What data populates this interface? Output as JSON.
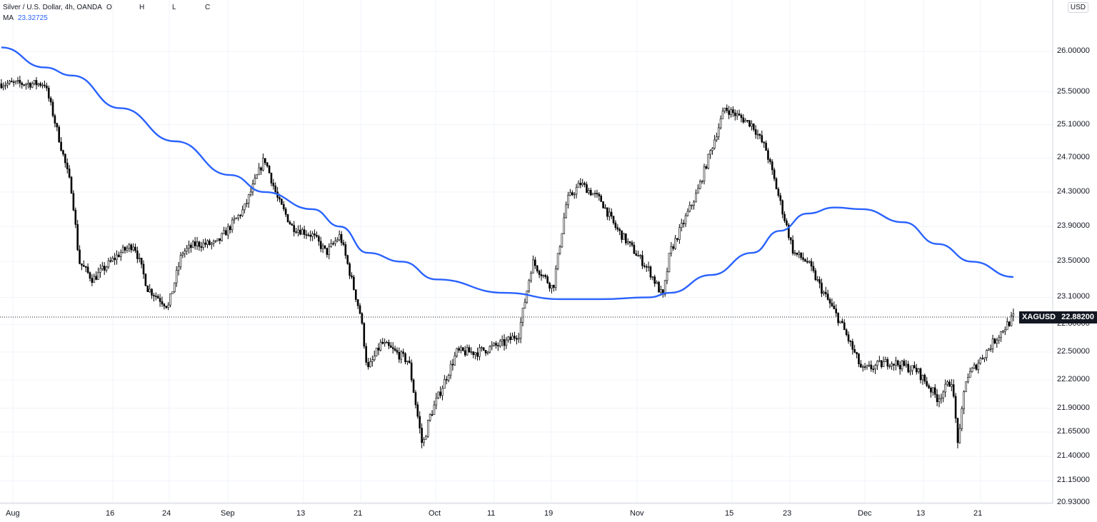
{
  "legend": {
    "symbol_title": "Silver / U.S. Dollar, 4h, OANDA",
    "ohlc_labels": [
      "O",
      "H",
      "L",
      "C"
    ],
    "ma_label": "MA",
    "ma_value": "23.32725"
  },
  "currency": "USD",
  "last_price": {
    "ticker": "XAGUSD",
    "value": "22.88200"
  },
  "colors": {
    "ma_line": "#2962ff",
    "candle": "#000000",
    "last_price_bg": "#131722"
  },
  "chart_data": {
    "type": "line",
    "title": "Silver / U.S. Dollar, 4h, OANDA",
    "ylabel": "USD",
    "y_scale": "log",
    "ylim": [
      20.9,
      26.4
    ],
    "y_ticks": [
      "26.00000",
      "25.50000",
      "25.10000",
      "24.70000",
      "24.30000",
      "23.90000",
      "23.50000",
      "23.10000",
      "22.80000",
      "22.50000",
      "22.20000",
      "21.90000",
      "21.65000",
      "21.40000",
      "21.15000",
      "20.93000"
    ],
    "x_ticks": [
      "Aug",
      "16",
      "24",
      "Sep",
      "13",
      "21",
      "Oct",
      "11",
      "19",
      "Nov",
      "15",
      "23",
      "Dec",
      "13",
      "21"
    ],
    "grid": true,
    "series": [
      {
        "name": "XAGUSD",
        "x": [
          "Aug 2",
          "Aug 5",
          "Aug 6",
          "Aug 9",
          "Aug 10",
          "Aug 12",
          "Aug 16",
          "Aug 18",
          "Aug 20",
          "Aug 23",
          "Aug 25",
          "Aug 27",
          "Aug 30",
          "Sep 3",
          "Sep 6",
          "Sep 8",
          "Sep 10",
          "Sep 13",
          "Sep 15",
          "Sep 17",
          "Sep 20",
          "Sep 21",
          "Sep 23",
          "Sep 27",
          "Sep 29",
          "Sep 30",
          "Oct 4",
          "Oct 7",
          "Oct 11",
          "Oct 13",
          "Oct 15",
          "Oct 18",
          "Oct 20",
          "Oct 22",
          "Oct 25",
          "Oct 27",
          "Nov 1",
          "Nov 3",
          "Nov 4",
          "Nov 8",
          "Nov 10",
          "Nov 12",
          "Nov 16",
          "Nov 18",
          "Nov 22",
          "Nov 24",
          "Nov 26",
          "Nov 29",
          "Dec 2",
          "Dec 6",
          "Dec 10",
          "Dec 13",
          "Dec 15",
          "Dec 16",
          "Dec 17",
          "Dec 20",
          "Dec 22",
          "Dec 24"
        ],
        "values": [
          25.6,
          25.6,
          25.3,
          24.3,
          23.5,
          23.3,
          23.6,
          23.7,
          23.2,
          23.0,
          23.6,
          23.7,
          23.7,
          24.1,
          24.7,
          24.2,
          23.9,
          23.8,
          23.6,
          23.8,
          22.9,
          22.3,
          22.6,
          22.4,
          21.5,
          21.8,
          22.5,
          22.5,
          22.6,
          22.7,
          23.5,
          23.2,
          24.2,
          24.4,
          24.2,
          23.9,
          23.4,
          23.1,
          23.6,
          24.3,
          24.8,
          25.3,
          25.1,
          24.8,
          23.6,
          23.5,
          23.2,
          22.8,
          22.3,
          22.4,
          22.3,
          22.0,
          22.2,
          21.5,
          22.2,
          22.5,
          22.7,
          22.88
        ]
      },
      {
        "name": "MA",
        "x": [
          "Aug 1",
          "Aug 5",
          "Aug 9",
          "Aug 16",
          "Aug 24",
          "Sep 1",
          "Sep 6",
          "Sep 13",
          "Sep 17",
          "Sep 21",
          "Sep 26",
          "Oct 1",
          "Oct 11",
          "Oct 19",
          "Oct 25",
          "Nov 1",
          "Nov 4",
          "Nov 10",
          "Nov 16",
          "Nov 20",
          "Nov 24",
          "Nov 28",
          "Dec 2",
          "Dec 8",
          "Dec 13",
          "Dec 18",
          "Dec 24"
        ],
        "values": [
          26.05,
          25.8,
          25.7,
          25.3,
          24.9,
          24.5,
          24.3,
          24.1,
          23.9,
          23.6,
          23.5,
          23.3,
          23.15,
          23.08,
          23.08,
          23.1,
          23.15,
          23.35,
          23.6,
          23.85,
          24.05,
          24.12,
          24.1,
          23.95,
          23.7,
          23.5,
          23.32725
        ]
      }
    ]
  }
}
